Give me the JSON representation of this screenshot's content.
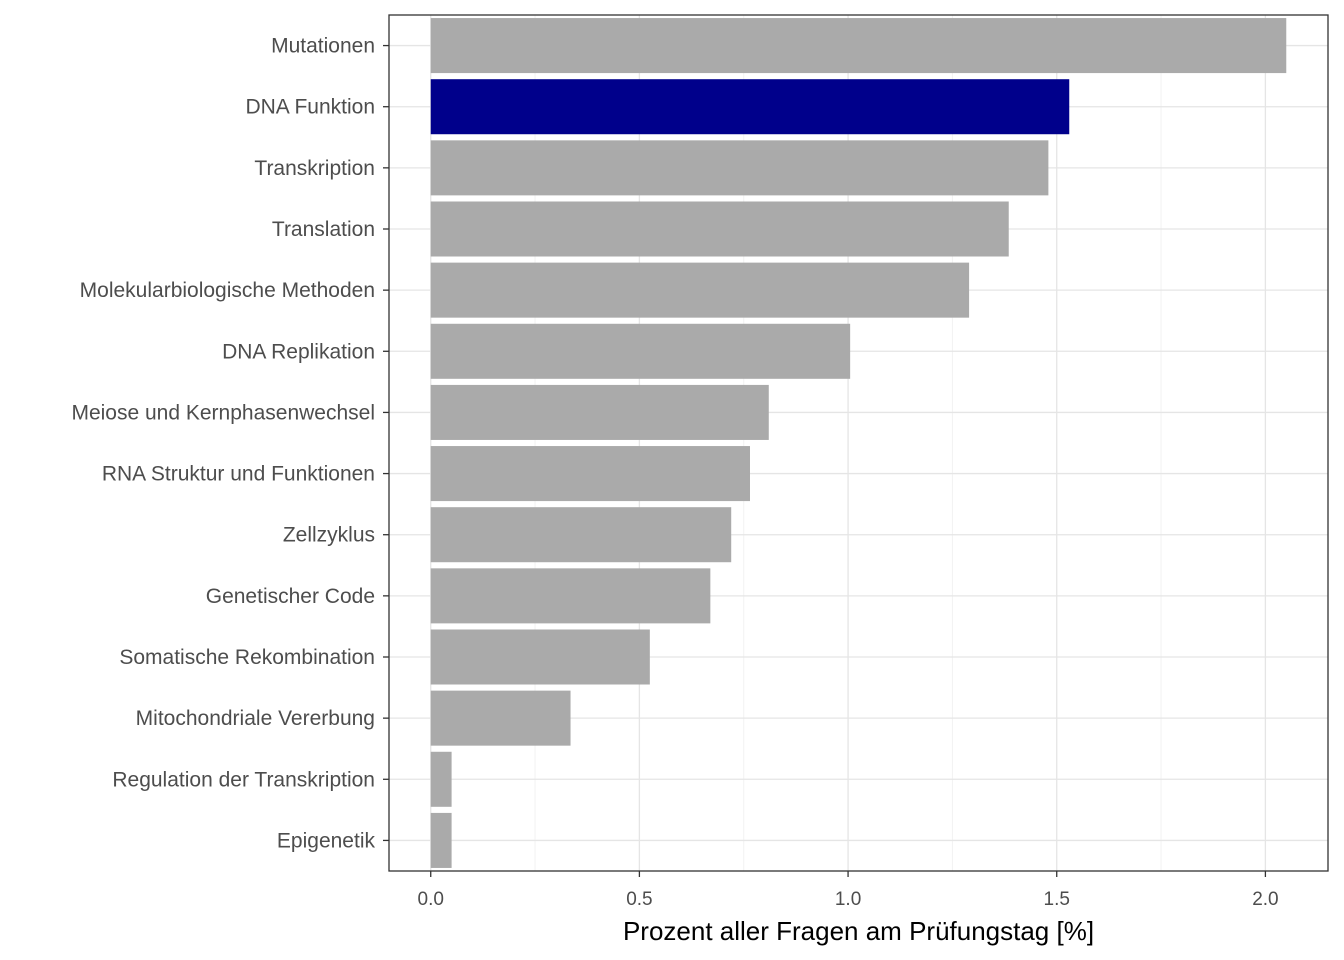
{
  "chart_data": {
    "type": "bar",
    "orientation": "horizontal",
    "categories": [
      "Mutationen",
      "DNA Funktion",
      "Transkription",
      "Translation",
      "Molekularbiologische Methoden",
      "DNA Replikation",
      "Meiose und Kernphasenwechsel",
      "RNA Struktur und Funktionen",
      "Zellzyklus",
      "Genetischer Code",
      "Somatische Rekombination",
      "Mitochondriale Vererbung",
      "Regulation der Transkription",
      "Epigenetik"
    ],
    "values": [
      2.05,
      1.53,
      1.48,
      1.385,
      1.29,
      1.005,
      0.81,
      0.765,
      0.72,
      0.67,
      0.525,
      0.335,
      0.05,
      0.05
    ],
    "highlighted": "DNA Funktion",
    "colors": {
      "default": "#aaaaaa",
      "highlight": "#00008b"
    },
    "xlabel": "Prozent aller Fragen am Prüfungstag [%]",
    "ylabel": "",
    "xlim": [
      -0.1,
      2.15
    ],
    "xticks": [
      "0.0",
      "0.5",
      "1.0",
      "1.5",
      "2.0"
    ],
    "grid": true,
    "legend": "none"
  }
}
